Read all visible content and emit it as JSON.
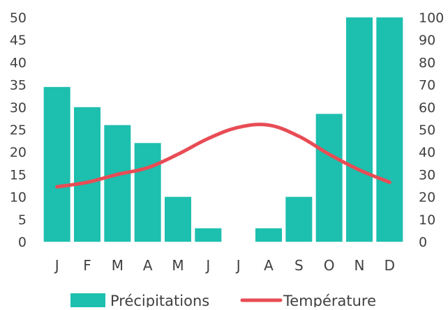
{
  "chart_data": {
    "type": "bar",
    "title": "",
    "categories": [
      "J",
      "F",
      "M",
      "A",
      "M",
      "J",
      "J",
      "A",
      "S",
      "O",
      "N",
      "D"
    ],
    "series": [
      {
        "name": "Précipitations",
        "type": "bar",
        "axis": "left",
        "color": "#1DBFAE",
        "values": [
          34.5,
          30,
          26,
          22,
          10,
          3,
          0,
          3,
          10,
          28.5,
          50,
          50
        ]
      },
      {
        "name": "Température",
        "type": "line",
        "axis": "right",
        "color": "#E84C55",
        "values": [
          24.5,
          26.5,
          30,
          33,
          39,
          46,
          51,
          52,
          47,
          39,
          32,
          26.5
        ]
      }
    ],
    "y_left": {
      "min": 0,
      "max": 50,
      "step": 5,
      "ticks": [
        "0",
        "5",
        "10",
        "15",
        "20",
        "25",
        "30",
        "35",
        "40",
        "45",
        "50"
      ]
    },
    "y_right": {
      "min": 0,
      "max": 100,
      "step": 10,
      "ticks": [
        "0",
        "10",
        "20",
        "30",
        "40",
        "50",
        "60",
        "70",
        "80",
        "90",
        "100"
      ]
    },
    "grid": false,
    "legend_position": "bottom"
  }
}
